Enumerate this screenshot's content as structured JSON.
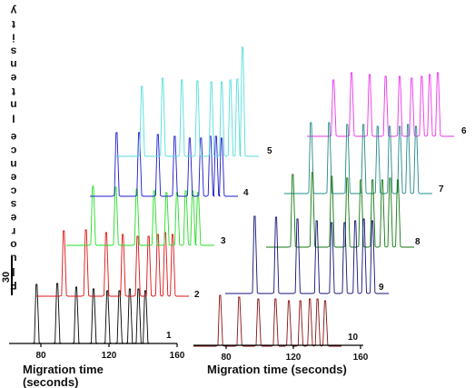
{
  "chart_data": {
    "type": "line",
    "title": "",
    "ylabel": "Fluorescence Intensity",
    "scale_bar_label": "30",
    "panels": [
      {
        "name": "left",
        "xlabel": [
          "Migration time",
          "(seconds)"
        ],
        "xticks": [
          "80",
          "120",
          "160"
        ],
        "xlim": [
          60,
          160
        ],
        "traces": [
          {
            "label": "1",
            "color": "#000000",
            "peaks": [
              88,
              100,
              111,
              121,
              129,
              136,
              142,
              147,
              151
            ]
          },
          {
            "label": "2",
            "color": "#dd1111",
            "peaks": [
              104,
              116,
              127,
              136,
              144,
              150,
              155,
              159,
              163
            ]
          },
          {
            "label": "3",
            "color": "#22dd22",
            "peaks": [
              116,
              129,
              141,
              151,
              158,
              164,
              169,
              173,
              176
            ]
          },
          {
            "label": "4",
            "color": "#1a1acc",
            "peaks": [
              125,
              137,
              147,
              156,
              164,
              170,
              175,
              178,
              181
            ]
          },
          {
            "label": "5",
            "color": "#55dddd",
            "peaks": [
              139,
              151,
              162,
              171,
              179,
              185,
              190,
              194,
              197
            ]
          }
        ]
      },
      {
        "name": "right",
        "xlabel": [
          "Migration time (seconds)"
        ],
        "xticks": [
          "80",
          "120",
          "160"
        ],
        "xlim": [
          60,
          160
        ],
        "traces": [
          {
            "label": "6",
            "color": "#ee33ee",
            "peaks": [
              146,
              155,
              164,
              172,
              179,
              185,
              190,
              194,
              198
            ]
          },
          {
            "label": "7",
            "color": "#228888",
            "peaks": [
              128,
              137,
              146,
              154,
              161,
              167,
              172,
              176,
              180
            ]
          },
          {
            "label": "8",
            "color": "#117711",
            "peaks": [
              120,
              130,
              140,
              148,
              155,
              161,
              166,
              170,
              174
            ]
          },
          {
            "label": "9",
            "color": "#111177",
            "peaks": [
              97,
              107,
              117,
              126,
              133,
              139,
              144,
              148,
              152
            ]
          },
          {
            "label": "10",
            "color": "#881111",
            "peaks": [
              86,
              96,
              106,
              115,
              122,
              128,
              133,
              137,
              141
            ]
          }
        ]
      }
    ]
  }
}
